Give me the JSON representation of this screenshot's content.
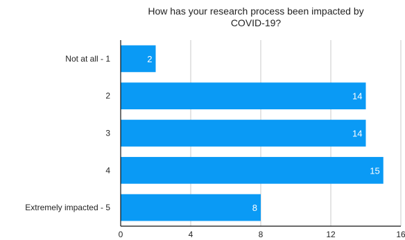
{
  "chart_data": {
    "type": "bar",
    "orientation": "horizontal",
    "title_lines": [
      "How has your research process been impacted by",
      "COVID-19?"
    ],
    "categories": [
      "Not at all - 1",
      "2",
      "3",
      "4",
      "Extremely impacted - 5"
    ],
    "values": [
      2,
      14,
      14,
      15,
      8
    ],
    "xlim": [
      0,
      16
    ],
    "xticks": [
      0,
      4,
      8,
      12,
      16
    ],
    "grid": true,
    "bar_color": "#0a9af5",
    "grid_color": "#c8c8c8",
    "axis_color": "#111111",
    "show_data_labels": true
  }
}
